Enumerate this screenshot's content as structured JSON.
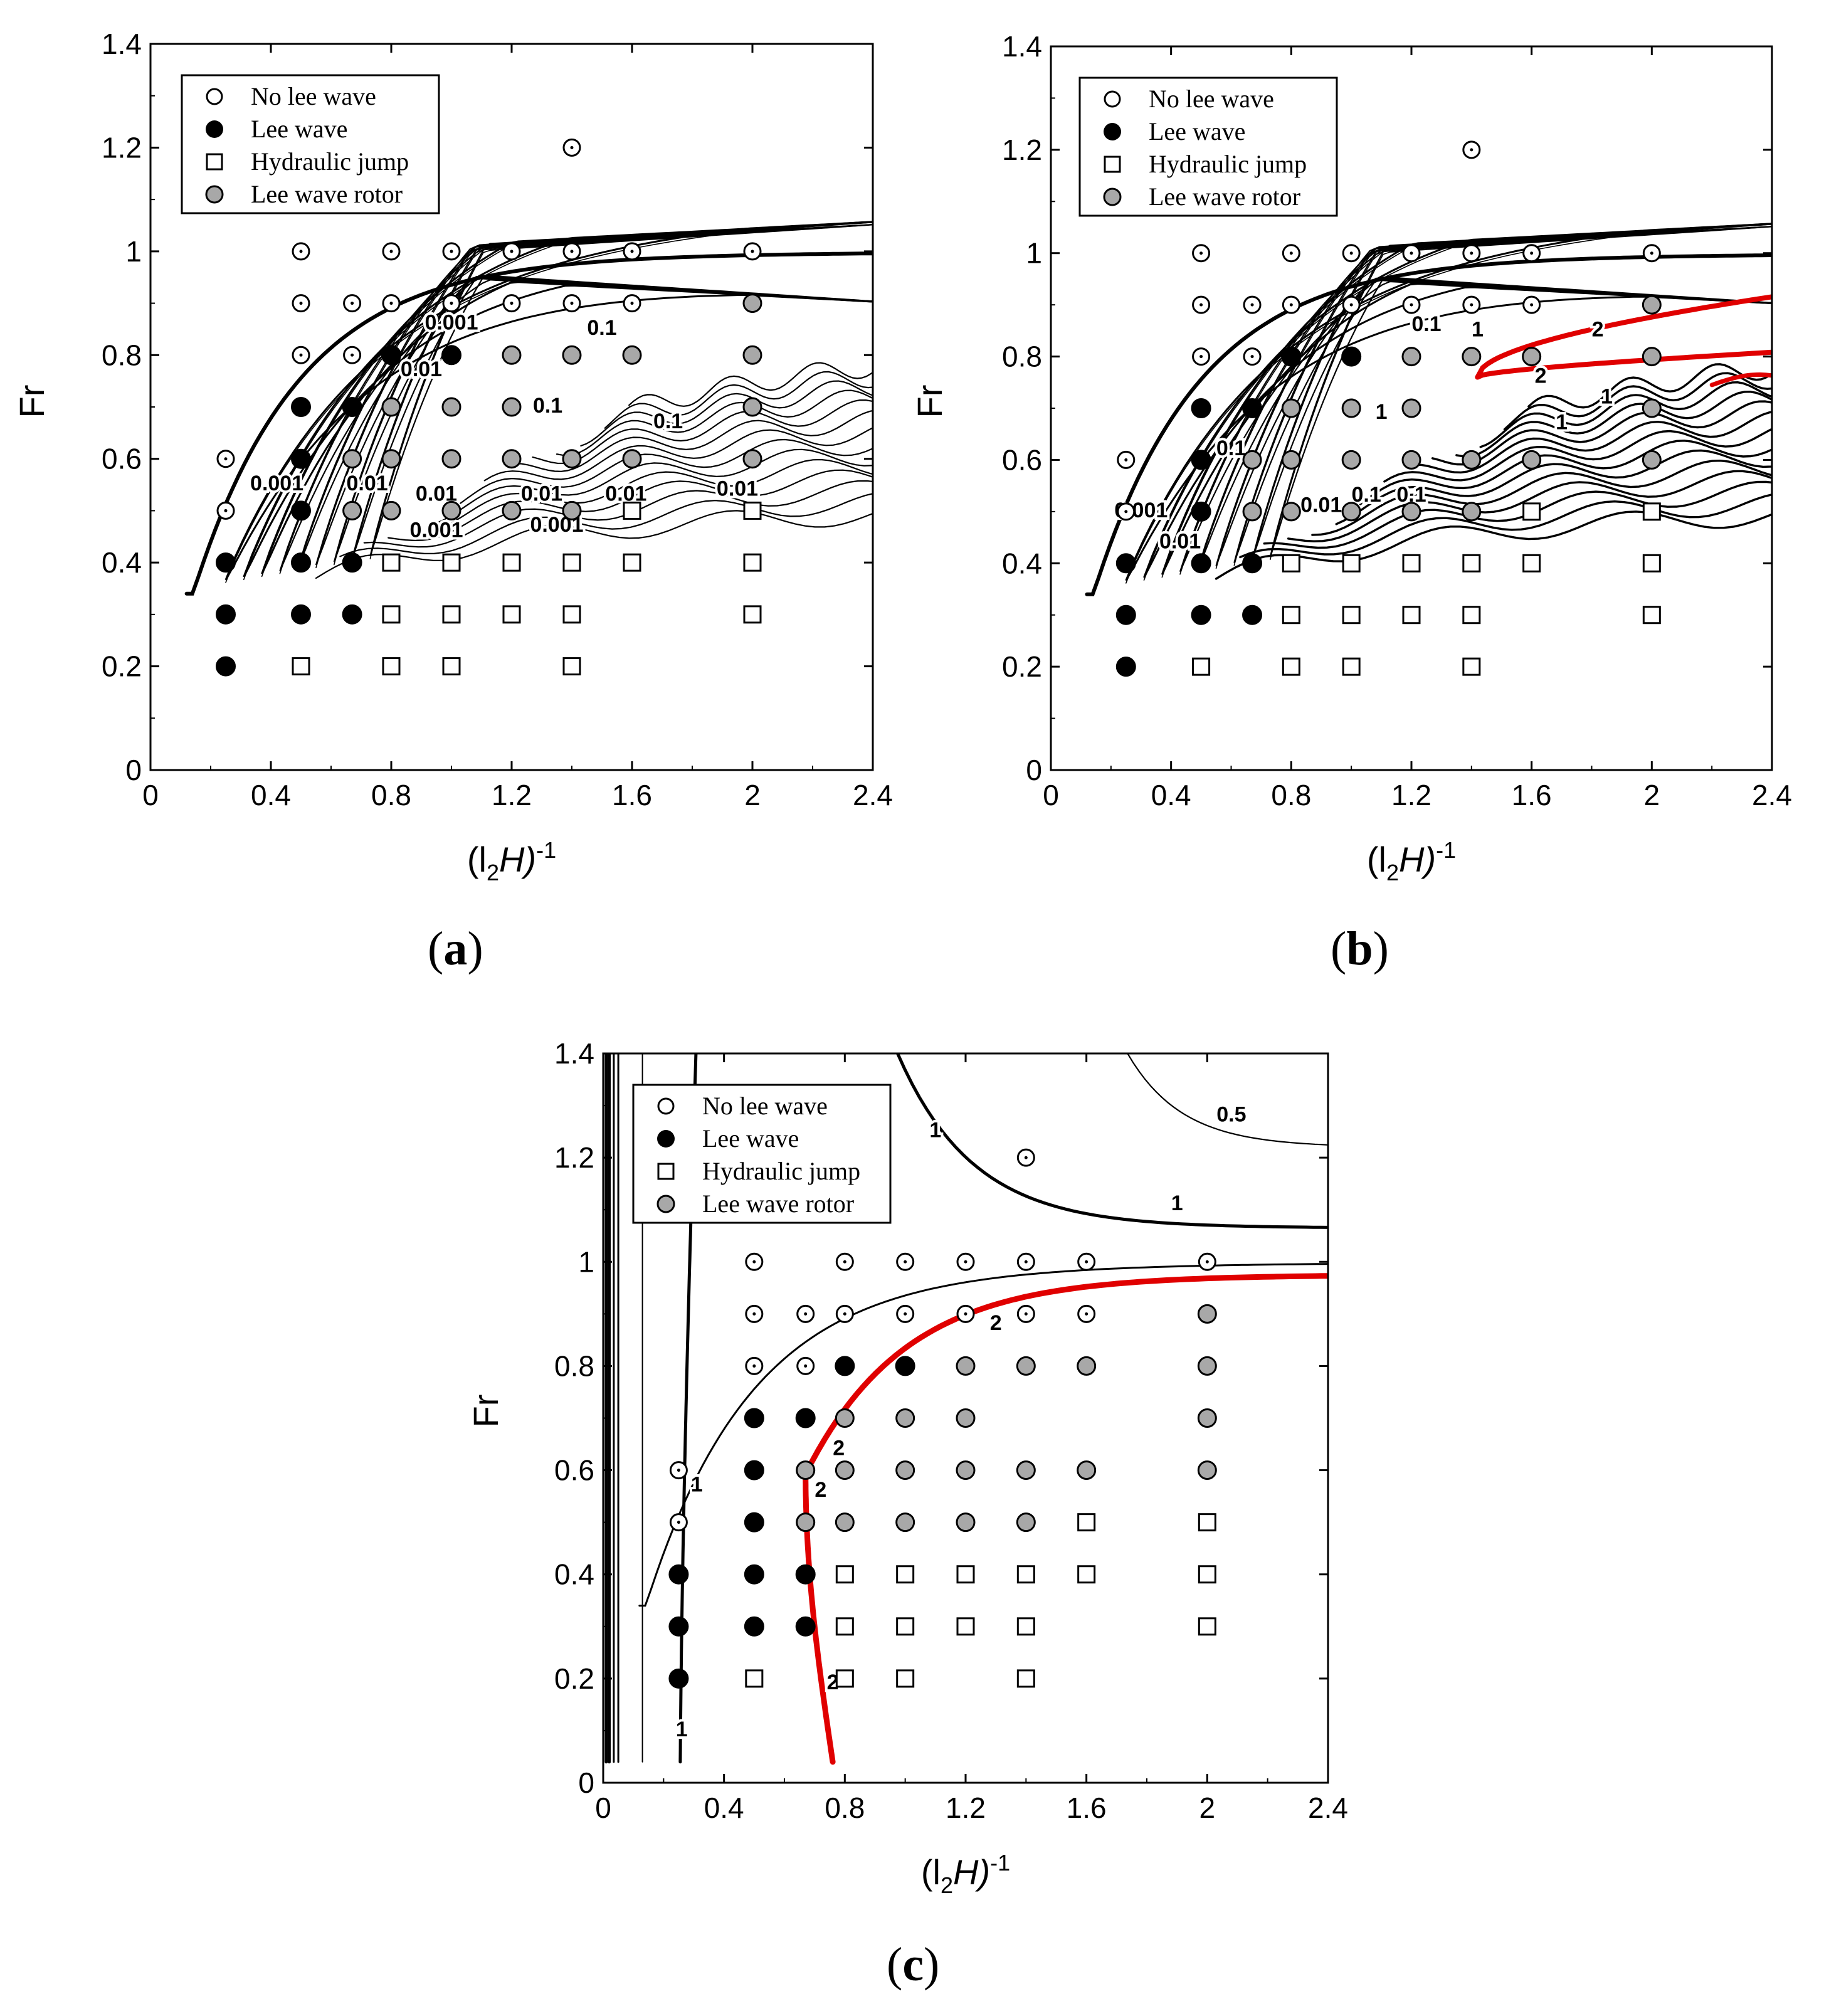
{
  "figure": {
    "captions": [
      "a",
      "b",
      "c"
    ]
  },
  "colors": {
    "contour": "#000000",
    "critical_contour": "#e00000",
    "rotor_fill": "#a8a8a8",
    "axis": "#000000"
  },
  "chart_data": [
    {
      "id": "a",
      "type": "scatter",
      "xlabel_base": "(l",
      "xlabel_sub": "2",
      "xlabel_end": "H)",
      "xlabel_sup": "-1",
      "ylabel": "Fr",
      "xlim": [
        0,
        2.4
      ],
      "ylim": [
        0,
        1.4
      ],
      "xticks": [
        "0",
        "0.4",
        "0.8",
        "1.2",
        "1.6",
        "2",
        "2.4"
      ],
      "yticks": [
        "0",
        "0.2",
        "0.4",
        "0.6",
        "0.8",
        "1",
        "1.2",
        "1.4"
      ],
      "legend": [
        "No lee wave",
        "Lee wave",
        "Hydraulic jump",
        "Lee wave rotor"
      ],
      "contour_labels": [
        {
          "text": "0.001",
          "x": 0.42,
          "y": 0.55
        },
        {
          "text": "0.001",
          "x": 1.0,
          "y": 0.86
        },
        {
          "text": "0.01",
          "x": 0.9,
          "y": 0.77
        },
        {
          "text": "0.01",
          "x": 0.72,
          "y": 0.55
        },
        {
          "text": "0.01",
          "x": 0.95,
          "y": 0.53
        },
        {
          "text": "0.01",
          "x": 1.3,
          "y": 0.53
        },
        {
          "text": "0.01",
          "x": 1.58,
          "y": 0.53
        },
        {
          "text": "0.01",
          "x": 1.95,
          "y": 0.54
        },
        {
          "text": "0.001",
          "x": 0.95,
          "y": 0.46
        },
        {
          "text": "0.001",
          "x": 1.35,
          "y": 0.47
        },
        {
          "text": "0.1",
          "x": 1.5,
          "y": 0.85
        },
        {
          "text": "0.1",
          "x": 1.32,
          "y": 0.7
        },
        {
          "text": "0.1",
          "x": 1.72,
          "y": 0.67
        }
      ],
      "critical_labels": [],
      "no_lee_wave": [
        [
          0.25,
          0.6
        ],
        [
          0.25,
          0.5
        ],
        [
          0.5,
          1.0
        ],
        [
          0.5,
          0.9
        ],
        [
          0.5,
          0.8
        ],
        [
          0.67,
          0.9
        ],
        [
          0.67,
          0.8
        ],
        [
          0.8,
          1.0
        ],
        [
          0.8,
          0.9
        ],
        [
          1.0,
          1.0
        ],
        [
          1.0,
          0.9
        ],
        [
          1.2,
          1.0
        ],
        [
          1.2,
          0.9
        ],
        [
          1.4,
          1.2
        ],
        [
          1.4,
          1.0
        ],
        [
          1.4,
          0.9
        ],
        [
          1.6,
          1.0
        ],
        [
          1.6,
          0.9
        ],
        [
          2.0,
          1.0
        ]
      ],
      "lee_wave": [
        [
          0.25,
          0.4
        ],
        [
          0.25,
          0.3
        ],
        [
          0.25,
          0.2
        ],
        [
          0.5,
          0.7
        ],
        [
          0.5,
          0.6
        ],
        [
          0.5,
          0.5
        ],
        [
          0.5,
          0.4
        ],
        [
          0.5,
          0.3
        ],
        [
          0.67,
          0.7
        ],
        [
          0.67,
          0.4
        ],
        [
          0.67,
          0.3
        ],
        [
          0.8,
          0.8
        ],
        [
          1.0,
          0.8
        ]
      ],
      "hydraulic_jump": [
        [
          0.5,
          0.2
        ],
        [
          0.8,
          0.4
        ],
        [
          0.8,
          0.3
        ],
        [
          0.8,
          0.2
        ],
        [
          1.0,
          0.4
        ],
        [
          1.0,
          0.3
        ],
        [
          1.0,
          0.2
        ],
        [
          1.2,
          0.4
        ],
        [
          1.2,
          0.3
        ],
        [
          1.4,
          0.4
        ],
        [
          1.4,
          0.3
        ],
        [
          1.4,
          0.2
        ],
        [
          1.6,
          0.5
        ],
        [
          1.6,
          0.4
        ],
        [
          2.0,
          0.5
        ],
        [
          2.0,
          0.4
        ],
        [
          2.0,
          0.3
        ]
      ],
      "rotor": [
        [
          0.67,
          0.6
        ],
        [
          0.67,
          0.5
        ],
        [
          0.8,
          0.7
        ],
        [
          0.8,
          0.6
        ],
        [
          0.8,
          0.5
        ],
        [
          1.0,
          0.7
        ],
        [
          1.0,
          0.6
        ],
        [
          1.0,
          0.5
        ],
        [
          1.2,
          0.8
        ],
        [
          1.2,
          0.7
        ],
        [
          1.2,
          0.6
        ],
        [
          1.2,
          0.5
        ],
        [
          1.4,
          0.8
        ],
        [
          1.4,
          0.6
        ],
        [
          1.4,
          0.5
        ],
        [
          1.6,
          0.8
        ],
        [
          1.6,
          0.6
        ],
        [
          2.0,
          0.9
        ],
        [
          2.0,
          0.8
        ],
        [
          2.0,
          0.7
        ],
        [
          2.0,
          0.6
        ]
      ]
    },
    {
      "id": "b",
      "type": "scatter",
      "xlabel_base": "(l",
      "xlabel_sub": "2",
      "xlabel_end": "H)",
      "xlabel_sup": "-1",
      "ylabel": "Fr",
      "xlim": [
        0,
        2.4
      ],
      "ylim": [
        0,
        1.4
      ],
      "xticks": [
        "0",
        "0.4",
        "0.8",
        "1.2",
        "1.6",
        "2",
        "2.4"
      ],
      "yticks": [
        "0",
        "0.2",
        "0.4",
        "0.6",
        "0.8",
        "1",
        "1.2",
        "1.4"
      ],
      "legend": [
        "No lee wave",
        "Lee wave",
        "Hydraulic jump",
        "Lee wave rotor"
      ],
      "contour_labels": [
        {
          "text": "0.001",
          "x": 0.3,
          "y": 0.5
        },
        {
          "text": "0.01",
          "x": 0.43,
          "y": 0.44
        },
        {
          "text": "0.1",
          "x": 0.6,
          "y": 0.62
        },
        {
          "text": "0.01",
          "x": 0.9,
          "y": 0.51
        },
        {
          "text": "0.1",
          "x": 1.05,
          "y": 0.53
        },
        {
          "text": "0.1",
          "x": 1.2,
          "y": 0.53
        },
        {
          "text": "0.1",
          "x": 1.25,
          "y": 0.86
        },
        {
          "text": "1",
          "x": 1.42,
          "y": 0.85
        },
        {
          "text": "1",
          "x": 1.1,
          "y": 0.69
        },
        {
          "text": "1",
          "x": 1.85,
          "y": 0.72
        },
        {
          "text": "1",
          "x": 1.7,
          "y": 0.67
        }
      ],
      "critical_labels": [
        {
          "text": "2",
          "x": 1.82,
          "y": 0.85
        },
        {
          "text": "2",
          "x": 1.63,
          "y": 0.76
        }
      ],
      "no_lee_wave": [
        [
          0.25,
          0.6
        ],
        [
          0.25,
          0.5
        ],
        [
          0.5,
          1.0
        ],
        [
          0.5,
          0.9
        ],
        [
          0.5,
          0.8
        ],
        [
          0.67,
          0.9
        ],
        [
          0.67,
          0.8
        ],
        [
          0.8,
          1.0
        ],
        [
          0.8,
          0.9
        ],
        [
          1.0,
          1.0
        ],
        [
          1.0,
          0.9
        ],
        [
          1.2,
          1.0
        ],
        [
          1.2,
          0.9
        ],
        [
          1.4,
          1.2
        ],
        [
          1.4,
          1.0
        ],
        [
          1.4,
          0.9
        ],
        [
          1.6,
          1.0
        ],
        [
          1.6,
          0.9
        ],
        [
          2.0,
          1.0
        ]
      ],
      "lee_wave": [
        [
          0.25,
          0.4
        ],
        [
          0.25,
          0.3
        ],
        [
          0.25,
          0.2
        ],
        [
          0.5,
          0.7
        ],
        [
          0.5,
          0.6
        ],
        [
          0.5,
          0.5
        ],
        [
          0.5,
          0.4
        ],
        [
          0.5,
          0.3
        ],
        [
          0.67,
          0.7
        ],
        [
          0.67,
          0.4
        ],
        [
          0.67,
          0.3
        ],
        [
          0.8,
          0.8
        ],
        [
          1.0,
          0.8
        ]
      ],
      "hydraulic_jump": [
        [
          0.5,
          0.2
        ],
        [
          0.8,
          0.4
        ],
        [
          0.8,
          0.3
        ],
        [
          0.8,
          0.2
        ],
        [
          1.0,
          0.4
        ],
        [
          1.0,
          0.3
        ],
        [
          1.0,
          0.2
        ],
        [
          1.2,
          0.4
        ],
        [
          1.2,
          0.3
        ],
        [
          1.4,
          0.4
        ],
        [
          1.4,
          0.3
        ],
        [
          1.4,
          0.2
        ],
        [
          1.6,
          0.5
        ],
        [
          1.6,
          0.4
        ],
        [
          2.0,
          0.5
        ],
        [
          2.0,
          0.4
        ],
        [
          2.0,
          0.3
        ]
      ],
      "rotor": [
        [
          0.67,
          0.6
        ],
        [
          0.67,
          0.5
        ],
        [
          0.8,
          0.7
        ],
        [
          0.8,
          0.6
        ],
        [
          0.8,
          0.5
        ],
        [
          1.0,
          0.7
        ],
        [
          1.0,
          0.6
        ],
        [
          1.0,
          0.5
        ],
        [
          1.2,
          0.8
        ],
        [
          1.2,
          0.7
        ],
        [
          1.2,
          0.6
        ],
        [
          1.2,
          0.5
        ],
        [
          1.4,
          0.8
        ],
        [
          1.4,
          0.6
        ],
        [
          1.4,
          0.5
        ],
        [
          1.6,
          0.8
        ],
        [
          1.6,
          0.6
        ],
        [
          2.0,
          0.9
        ],
        [
          2.0,
          0.8
        ],
        [
          2.0,
          0.7
        ],
        [
          2.0,
          0.6
        ]
      ]
    },
    {
      "id": "c",
      "type": "scatter",
      "xlabel_base": "(l",
      "xlabel_sub": "2",
      "xlabel_end": "H)",
      "xlabel_sup": "-1",
      "ylabel": "Fr",
      "xlim": [
        0,
        2.4
      ],
      "ylim": [
        0,
        1.4
      ],
      "xticks": [
        "0",
        "0.4",
        "0.8",
        "1.2",
        "1.6",
        "2",
        "2.4"
      ],
      "yticks": [
        "0",
        "0.2",
        "0.4",
        "0.6",
        "0.8",
        "1",
        "1.2",
        "1.4"
      ],
      "legend": [
        "No lee wave",
        "Lee wave",
        "Hydraulic jump",
        "Lee wave rotor"
      ],
      "contour_labels": [
        {
          "text": "1",
          "x": 0.31,
          "y": 0.57
        },
        {
          "text": "1",
          "x": 0.26,
          "y": 0.1
        },
        {
          "text": "1",
          "x": 1.1,
          "y": 1.25
        },
        {
          "text": "1",
          "x": 1.9,
          "y": 1.11
        },
        {
          "text": "0.5",
          "x": 2.08,
          "y": 1.28
        }
      ],
      "critical_labels": [
        {
          "text": "2",
          "x": 1.3,
          "y": 0.88
        },
        {
          "text": "2",
          "x": 0.78,
          "y": 0.64
        },
        {
          "text": "2",
          "x": 0.72,
          "y": 0.56
        },
        {
          "text": "2",
          "x": 0.76,
          "y": 0.19
        }
      ],
      "no_lee_wave": [
        [
          0.25,
          0.6
        ],
        [
          0.25,
          0.5
        ],
        [
          0.5,
          1.0
        ],
        [
          0.5,
          0.9
        ],
        [
          0.5,
          0.8
        ],
        [
          0.67,
          0.9
        ],
        [
          0.67,
          0.8
        ],
        [
          0.8,
          1.0
        ],
        [
          0.8,
          0.9
        ],
        [
          1.0,
          1.0
        ],
        [
          1.0,
          0.9
        ],
        [
          1.2,
          1.0
        ],
        [
          1.2,
          0.9
        ],
        [
          1.4,
          1.2
        ],
        [
          1.4,
          1.0
        ],
        [
          1.4,
          0.9
        ],
        [
          1.6,
          1.0
        ],
        [
          1.6,
          0.9
        ],
        [
          2.0,
          1.0
        ]
      ],
      "lee_wave": [
        [
          0.25,
          0.4
        ],
        [
          0.25,
          0.3
        ],
        [
          0.25,
          0.2
        ],
        [
          0.5,
          0.7
        ],
        [
          0.5,
          0.6
        ],
        [
          0.5,
          0.5
        ],
        [
          0.5,
          0.4
        ],
        [
          0.5,
          0.3
        ],
        [
          0.67,
          0.7
        ],
        [
          0.67,
          0.4
        ],
        [
          0.67,
          0.3
        ],
        [
          0.8,
          0.8
        ],
        [
          1.0,
          0.8
        ]
      ],
      "hydraulic_jump": [
        [
          0.5,
          0.2
        ],
        [
          0.8,
          0.4
        ],
        [
          0.8,
          0.3
        ],
        [
          0.8,
          0.2
        ],
        [
          1.0,
          0.4
        ],
        [
          1.0,
          0.3
        ],
        [
          1.0,
          0.2
        ],
        [
          1.2,
          0.4
        ],
        [
          1.2,
          0.3
        ],
        [
          1.4,
          0.4
        ],
        [
          1.4,
          0.3
        ],
        [
          1.4,
          0.2
        ],
        [
          1.6,
          0.5
        ],
        [
          1.6,
          0.4
        ],
        [
          2.0,
          0.5
        ],
        [
          2.0,
          0.4
        ],
        [
          2.0,
          0.3
        ]
      ],
      "rotor": [
        [
          0.67,
          0.6
        ],
        [
          0.67,
          0.5
        ],
        [
          0.8,
          0.7
        ],
        [
          0.8,
          0.6
        ],
        [
          0.8,
          0.5
        ],
        [
          1.0,
          0.7
        ],
        [
          1.0,
          0.6
        ],
        [
          1.0,
          0.5
        ],
        [
          1.2,
          0.8
        ],
        [
          1.2,
          0.7
        ],
        [
          1.2,
          0.6
        ],
        [
          1.2,
          0.5
        ],
        [
          1.4,
          0.8
        ],
        [
          1.4,
          0.6
        ],
        [
          1.4,
          0.5
        ],
        [
          1.6,
          0.8
        ],
        [
          1.6,
          0.6
        ],
        [
          2.0,
          0.9
        ],
        [
          2.0,
          0.8
        ],
        [
          2.0,
          0.7
        ],
        [
          2.0,
          0.6
        ]
      ]
    }
  ]
}
